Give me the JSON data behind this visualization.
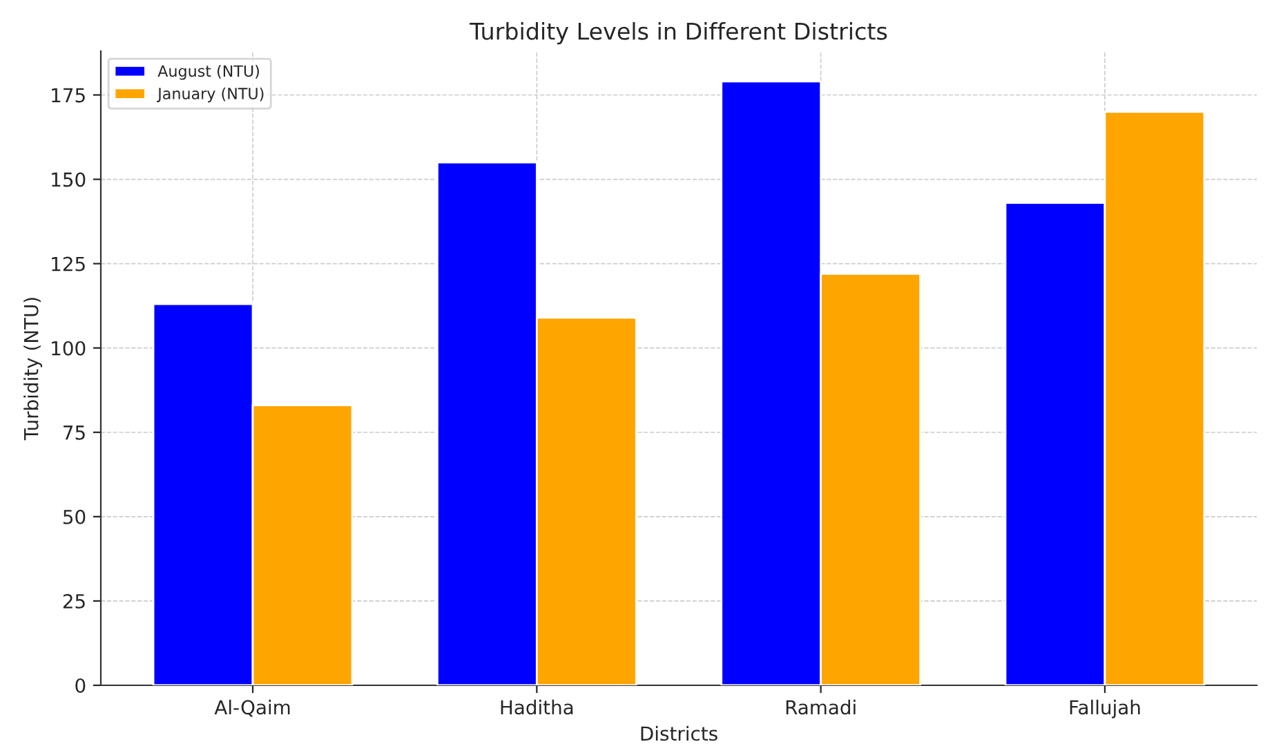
{
  "chart_data": {
    "type": "bar",
    "title": "Turbidity Levels in Different Districts",
    "xlabel": "Districts",
    "ylabel": "Turbidity (NTU)",
    "categories": [
      "Al-Qaim",
      "Haditha",
      "Ramadi",
      "Fallujah"
    ],
    "series": [
      {
        "name": "August (NTU)",
        "color": "#0000ff",
        "values": [
          113,
          155,
          179,
          143
        ]
      },
      {
        "name": "January (NTU)",
        "color": "#ffa500",
        "values": [
          83,
          109,
          122,
          170
        ]
      }
    ],
    "ylim": [
      0,
      188
    ],
    "yticks": [
      0,
      25,
      50,
      75,
      100,
      125,
      150,
      175
    ],
    "grid": true,
    "legend": "top left"
  }
}
